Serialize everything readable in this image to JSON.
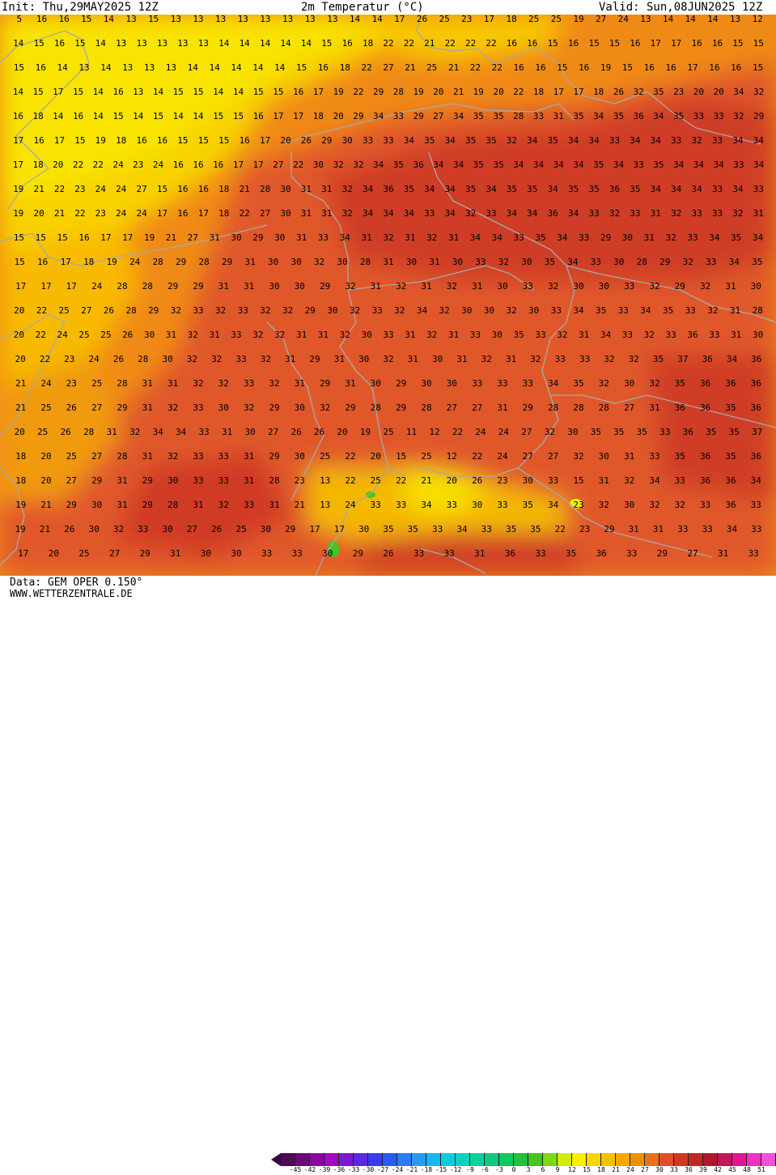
{
  "header": {
    "init_label": "Init: Thu,29MAY2025 12Z",
    "title": "2m Temperatur (°C)",
    "valid_label": "Valid: Sun,08JUN2025 12Z"
  },
  "footer": {
    "data_source": "Data: GEM OPER 0.150°",
    "website": "WWW.WETTERZENTRALE.DE"
  },
  "legend": {
    "ticks": [
      "-45",
      "-42",
      "-39",
      "-36",
      "-33",
      "-30",
      "-27",
      "-24",
      "-21",
      "-18",
      "-15",
      "-12",
      "-9",
      "-6",
      "-3",
      "0",
      "3",
      "6",
      "9",
      "12",
      "15",
      "18",
      "21",
      "24",
      "27",
      "30",
      "33",
      "36",
      "39",
      "42",
      "45",
      "48",
      "51"
    ],
    "colors": [
      "#4b0a52",
      "#6a0a7a",
      "#8a0aa0",
      "#a00ac0",
      "#7a1ad0",
      "#5a2ae0",
      "#3a3aee",
      "#2a5af0",
      "#2a7af0",
      "#2a9af0",
      "#1ab4f0",
      "#10c8e0",
      "#10d0c0",
      "#10d0a0",
      "#10c880",
      "#10c860",
      "#20c040",
      "#40c820",
      "#80d810",
      "#d0ec10",
      "#f8f000",
      "#f8d800",
      "#f8c000",
      "#f8a800",
      "#f09000",
      "#e87020",
      "#e05028",
      "#d03828",
      "#c02828",
      "#b01830",
      "#c01858",
      "#e01890",
      "#f030c0",
      "#f050e0"
    ],
    "arrow_colors": {
      "left": "#3a0040",
      "right": "#f050d8"
    }
  },
  "map": {
    "temp_labels": [
      [
        "5",
        "16",
        "16",
        "15",
        "14",
        "13",
        "15",
        "13",
        "13",
        "13",
        "13",
        "13",
        "13",
        "13",
        "13",
        "14",
        "14",
        "17",
        "26",
        "25",
        "23",
        "17",
        "18",
        "25",
        "25",
        "19",
        "27",
        "24",
        "13",
        "14",
        "14",
        "14",
        "13",
        "12"
      ],
      [
        "14",
        "15",
        "16",
        "15",
        "14",
        "13",
        "13",
        "13",
        "13",
        "13",
        "14",
        "14",
        "14",
        "14",
        "14",
        "15",
        "16",
        "18",
        "22",
        "22",
        "21",
        "22",
        "22",
        "22",
        "16",
        "16",
        "15",
        "16",
        "15",
        "15",
        "16",
        "17",
        "17",
        "16",
        "16",
        "15",
        "15"
      ],
      [
        "15",
        "16",
        "14",
        "13",
        "14",
        "13",
        "13",
        "13",
        "14",
        "14",
        "14",
        "14",
        "14",
        "15",
        "16",
        "18",
        "22",
        "27",
        "21",
        "25",
        "21",
        "22",
        "22",
        "16",
        "16",
        "15",
        "16",
        "19",
        "15",
        "16",
        "16",
        "17",
        "16",
        "16",
        "15"
      ],
      [
        "14",
        "15",
        "17",
        "15",
        "14",
        "16",
        "13",
        "14",
        "15",
        "15",
        "14",
        "14",
        "15",
        "15",
        "16",
        "17",
        "19",
        "22",
        "29",
        "28",
        "19",
        "20",
        "21",
        "19",
        "20",
        "22",
        "18",
        "17",
        "17",
        "18",
        "26",
        "32",
        "35",
        "23",
        "20",
        "20",
        "34",
        "32"
      ],
      [
        "16",
        "18",
        "14",
        "16",
        "14",
        "15",
        "14",
        "15",
        "14",
        "14",
        "15",
        "15",
        "16",
        "17",
        "17",
        "18",
        "20",
        "29",
        "34",
        "33",
        "29",
        "27",
        "34",
        "35",
        "35",
        "28",
        "33",
        "31",
        "35",
        "34",
        "35",
        "36",
        "34",
        "35",
        "33",
        "33",
        "32",
        "29"
      ],
      [
        "17",
        "16",
        "17",
        "15",
        "19",
        "18",
        "16",
        "16",
        "15",
        "15",
        "15",
        "16",
        "17",
        "20",
        "26",
        "29",
        "30",
        "33",
        "33",
        "34",
        "35",
        "34",
        "35",
        "35",
        "32",
        "34",
        "35",
        "34",
        "34",
        "33",
        "34",
        "34",
        "33",
        "32",
        "33",
        "34",
        "34"
      ],
      [
        "17",
        "18",
        "20",
        "22",
        "22",
        "24",
        "23",
        "24",
        "16",
        "16",
        "16",
        "17",
        "17",
        "27",
        "22",
        "30",
        "32",
        "32",
        "34",
        "35",
        "36",
        "34",
        "34",
        "35",
        "35",
        "34",
        "34",
        "34",
        "34",
        "35",
        "34",
        "33",
        "35",
        "34",
        "34",
        "34",
        "33",
        "34"
      ],
      [
        "19",
        "21",
        "22",
        "23",
        "24",
        "24",
        "27",
        "15",
        "16",
        "16",
        "18",
        "21",
        "28",
        "30",
        "31",
        "31",
        "32",
        "34",
        "36",
        "35",
        "34",
        "34",
        "35",
        "34",
        "35",
        "35",
        "34",
        "35",
        "35",
        "36",
        "35",
        "34",
        "34",
        "34",
        "33",
        "34",
        "33"
      ],
      [
        "19",
        "20",
        "21",
        "22",
        "23",
        "24",
        "24",
        "17",
        "16",
        "17",
        "18",
        "22",
        "27",
        "30",
        "31",
        "31",
        "32",
        "34",
        "34",
        "34",
        "33",
        "34",
        "32",
        "33",
        "34",
        "34",
        "36",
        "34",
        "33",
        "32",
        "33",
        "31",
        "32",
        "33",
        "33",
        "32",
        "31"
      ],
      [
        "15",
        "15",
        "15",
        "16",
        "17",
        "17",
        "19",
        "21",
        "27",
        "31",
        "30",
        "29",
        "30",
        "31",
        "33",
        "34",
        "31",
        "32",
        "31",
        "32",
        "31",
        "34",
        "34",
        "33",
        "35",
        "34",
        "33",
        "29",
        "30",
        "31",
        "32",
        "33",
        "34",
        "35",
        "34"
      ],
      [
        "15",
        "16",
        "17",
        "18",
        "19",
        "24",
        "28",
        "29",
        "28",
        "29",
        "31",
        "30",
        "30",
        "32",
        "30",
        "28",
        "31",
        "30",
        "31",
        "30",
        "33",
        "32",
        "30",
        "35",
        "34",
        "33",
        "30",
        "28",
        "29",
        "32",
        "33",
        "34",
        "35"
      ],
      [
        "17",
        "17",
        "17",
        "24",
        "28",
        "28",
        "29",
        "29",
        "31",
        "31",
        "30",
        "30",
        "29",
        "32",
        "31",
        "32",
        "31",
        "32",
        "31",
        "30",
        "33",
        "32",
        "30",
        "30",
        "33",
        "32",
        "29",
        "32",
        "31",
        "30"
      ],
      [
        "20",
        "22",
        "25",
        "27",
        "26",
        "28",
        "29",
        "32",
        "33",
        "32",
        "33",
        "32",
        "32",
        "29",
        "30",
        "32",
        "33",
        "32",
        "34",
        "32",
        "30",
        "30",
        "32",
        "30",
        "33",
        "34",
        "35",
        "33",
        "34",
        "35",
        "33",
        "32",
        "31",
        "28"
      ],
      [
        "20",
        "22",
        "24",
        "25",
        "25",
        "26",
        "30",
        "31",
        "32",
        "31",
        "33",
        "32",
        "32",
        "31",
        "31",
        "32",
        "30",
        "33",
        "31",
        "32",
        "31",
        "33",
        "30",
        "35",
        "33",
        "32",
        "31",
        "34",
        "33",
        "32",
        "33",
        "36",
        "33",
        "31",
        "30"
      ],
      [
        "20",
        "22",
        "23",
        "24",
        "26",
        "28",
        "30",
        "32",
        "32",
        "33",
        "32",
        "31",
        "29",
        "31",
        "30",
        "32",
        "31",
        "30",
        "31",
        "32",
        "31",
        "32",
        "33",
        "33",
        "32",
        "32",
        "35",
        "37",
        "36",
        "34",
        "36"
      ],
      [
        "21",
        "24",
        "23",
        "25",
        "28",
        "31",
        "31",
        "32",
        "32",
        "33",
        "32",
        "31",
        "29",
        "31",
        "30",
        "29",
        "30",
        "30",
        "33",
        "33",
        "33",
        "34",
        "35",
        "32",
        "30",
        "32",
        "35",
        "36",
        "36",
        "36"
      ],
      [
        "21",
        "25",
        "26",
        "27",
        "29",
        "31",
        "32",
        "33",
        "30",
        "32",
        "29",
        "30",
        "32",
        "29",
        "28",
        "29",
        "28",
        "27",
        "27",
        "31",
        "29",
        "28",
        "28",
        "28",
        "27",
        "31",
        "36",
        "36",
        "35",
        "36"
      ],
      [
        "20",
        "25",
        "26",
        "28",
        "31",
        "32",
        "34",
        "34",
        "33",
        "31",
        "30",
        "27",
        "26",
        "26",
        "20",
        "19",
        "25",
        "11",
        "12",
        "22",
        "24",
        "24",
        "27",
        "32",
        "30",
        "35",
        "35",
        "35",
        "33",
        "36",
        "35",
        "35",
        "37"
      ],
      [
        "18",
        "20",
        "25",
        "27",
        "28",
        "31",
        "32",
        "33",
        "33",
        "31",
        "29",
        "30",
        "25",
        "22",
        "20",
        "15",
        "25",
        "12",
        "22",
        "24",
        "27",
        "27",
        "32",
        "30",
        "31",
        "33",
        "35",
        "36",
        "35",
        "36"
      ],
      [
        "18",
        "20",
        "27",
        "29",
        "31",
        "29",
        "30",
        "33",
        "33",
        "31",
        "28",
        "23",
        "13",
        "22",
        "25",
        "22",
        "21",
        "20",
        "26",
        "23",
        "30",
        "33",
        "15",
        "31",
        "32",
        "34",
        "33",
        "36",
        "36",
        "34"
      ],
      [
        "19",
        "21",
        "29",
        "30",
        "31",
        "29",
        "28",
        "31",
        "32",
        "33",
        "31",
        "21",
        "13",
        "24",
        "33",
        "33",
        "34",
        "33",
        "30",
        "33",
        "35",
        "34",
        "23",
        "32",
        "30",
        "32",
        "32",
        "33",
        "36",
        "33"
      ],
      [
        "19",
        "21",
        "26",
        "30",
        "32",
        "33",
        "30",
        "27",
        "26",
        "25",
        "30",
        "29",
        "17",
        "17",
        "30",
        "35",
        "35",
        "33",
        "34",
        "33",
        "35",
        "35",
        "22",
        "23",
        "29",
        "31",
        "31",
        "33",
        "33",
        "34",
        "33"
      ],
      [
        "17",
        "20",
        "25",
        "27",
        "29",
        "31",
        "30",
        "30",
        "33",
        "33",
        "30",
        "29",
        "26",
        "33",
        "33",
        "31",
        "36",
        "33",
        "35",
        "36",
        "33",
        "29",
        "27",
        "31",
        "33"
      ]
    ]
  }
}
